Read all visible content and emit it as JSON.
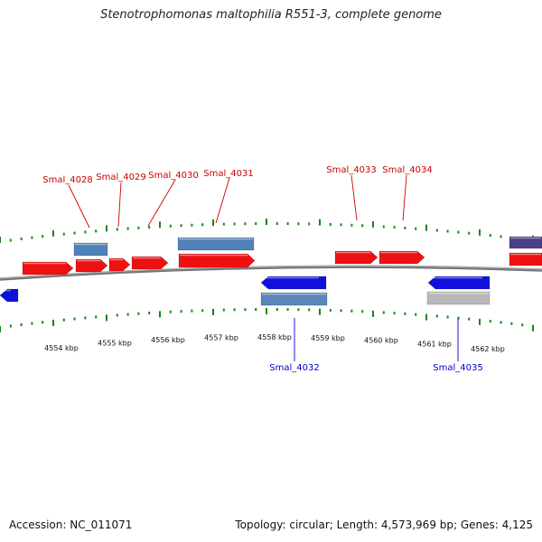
{
  "title": "Stenotrophomonas maltophilia R551-3, complete genome",
  "footer": {
    "accession": "Accession: NC_011071",
    "summary": "Topology: circular; Length: 4,573,969 bp; Genes: 4,125"
  },
  "colors": {
    "forward_cds": "#ee1111",
    "reverse_cds": "#1111dd",
    "forward_rna": "#4f82b6",
    "reverse_rna": "#5a86b8",
    "pseudo": "#b8b8b8",
    "other": "#4a3f88",
    "backbone": "#777777",
    "ticks": "#118811",
    "forward_label": "#cc0000",
    "reverse_label": "#0000cc"
  },
  "scale": {
    "unit": "kbp",
    "labels": [
      "4554 kbp",
      "4555 kbp",
      "4556 kbp",
      "4557 kbp",
      "4558 kbp",
      "4559 kbp",
      "4560 kbp",
      "4561 kbp",
      "4562 kbp"
    ]
  },
  "labels": [
    {
      "text": "Smal_4028",
      "strand": "forward"
    },
    {
      "text": "Smal_4029",
      "strand": "forward"
    },
    {
      "text": "Smal_4030",
      "strand": "forward"
    },
    {
      "text": "Smal_4031",
      "strand": "forward"
    },
    {
      "text": "Smal_4033",
      "strand": "forward"
    },
    {
      "text": "Smal_4034",
      "strand": "forward"
    },
    {
      "text": "Smal_4032",
      "strand": "reverse"
    },
    {
      "text": "Smal_4035",
      "strand": "reverse"
    }
  ]
}
